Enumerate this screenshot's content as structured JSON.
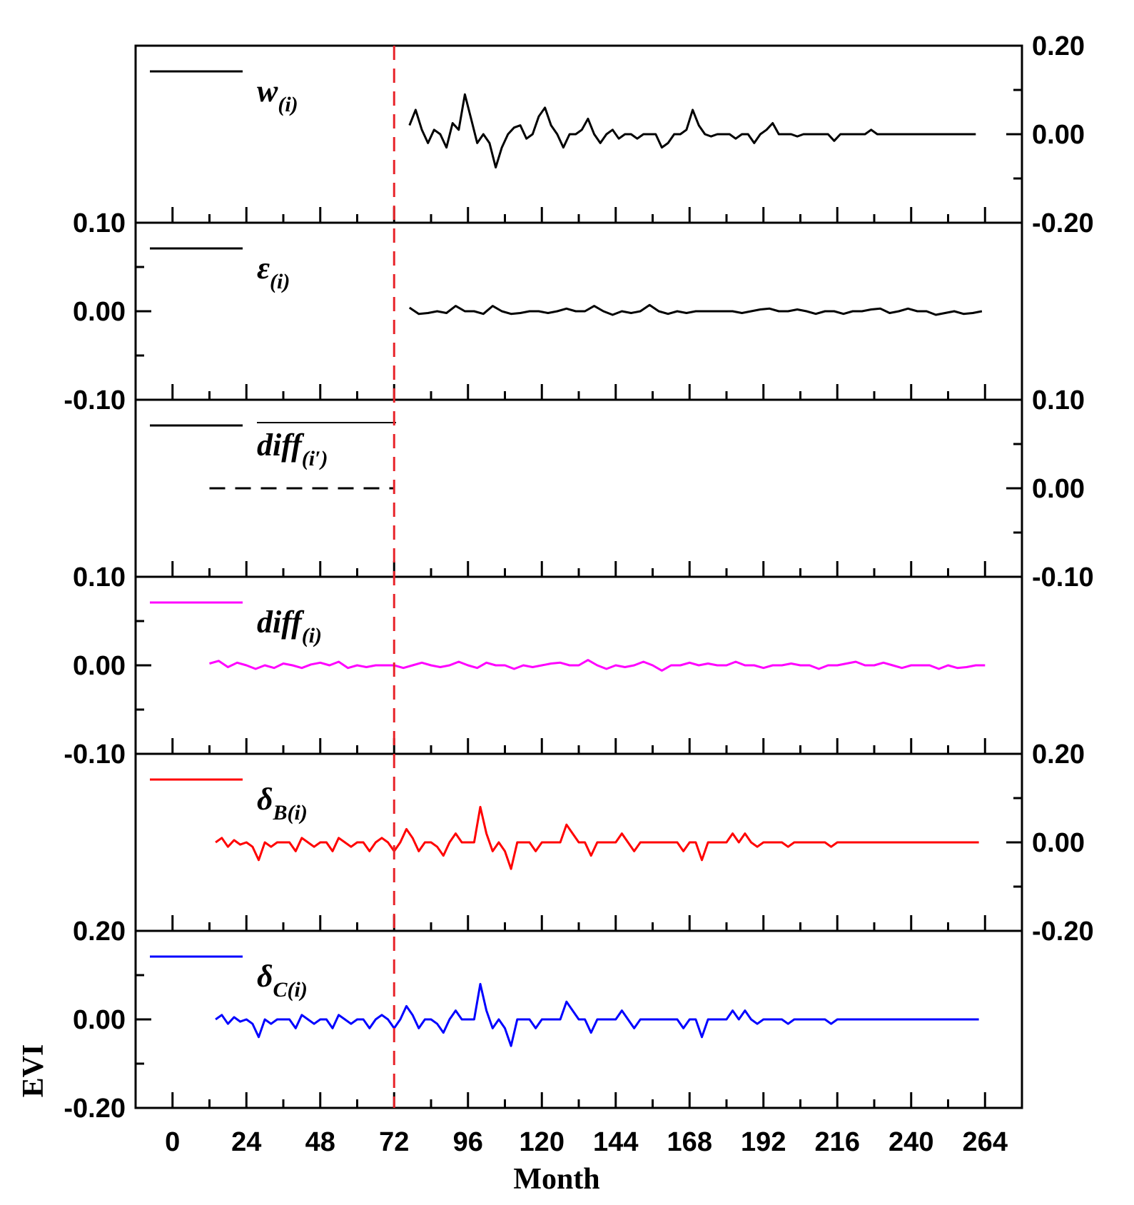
{
  "chart_data": {
    "type": "line",
    "xlabel": "Month",
    "ylabel": "EVI",
    "x_ticks": [
      "0",
      "24",
      "48",
      "72",
      "96",
      "120",
      "144",
      "168",
      "192",
      "216",
      "240",
      "264"
    ],
    "xlim": [
      -12,
      276
    ],
    "reference_line": {
      "x": 72,
      "style": "dashed",
      "color": "#e8242a"
    },
    "panels": [
      {
        "id": "w",
        "legend": {
          "base": "w",
          "sub": "(i)"
        },
        "color": "#000000",
        "axis_side": "right",
        "ylim": [
          -0.2,
          0.2
        ],
        "tick_labels": [
          "0.20",
          "0.00",
          "-0.20"
        ],
        "x": [
          77,
          79,
          81,
          83,
          85,
          87,
          89,
          91,
          93,
          95,
          97,
          99,
          101,
          103,
          105,
          107,
          109,
          111,
          113,
          115,
          117,
          119,
          121,
          123,
          125,
          127,
          129,
          131,
          133,
          135,
          137,
          139,
          141,
          143,
          145,
          147,
          149,
          151,
          153,
          155,
          157,
          159,
          161,
          163,
          165,
          167,
          169,
          171,
          173,
          175,
          177,
          179,
          181,
          183,
          185,
          187,
          189,
          191,
          193,
          195,
          197,
          199,
          201,
          203,
          205,
          207,
          209,
          211,
          213,
          215,
          217,
          219,
          221,
          223,
          225,
          227,
          229,
          231,
          233,
          235,
          237,
          239,
          241,
          243,
          245,
          247,
          249,
          251,
          253,
          255,
          257,
          259,
          261
        ],
        "values": [
          0.02,
          0.055,
          0.01,
          -0.02,
          0.01,
          0.0,
          -0.03,
          0.025,
          0.01,
          0.09,
          0.035,
          -0.02,
          0.0,
          -0.02,
          -0.075,
          -0.03,
          0.0,
          0.015,
          0.02,
          -0.01,
          0.0,
          0.04,
          0.06,
          0.02,
          0.0,
          -0.03,
          0.0,
          0.0,
          0.01,
          0.035,
          0.0,
          -0.02,
          0.0,
          0.01,
          -0.01,
          0.0,
          0.0,
          -0.01,
          0.0,
          0.0,
          0.0,
          -0.03,
          -0.02,
          0.0,
          0.0,
          0.01,
          0.055,
          0.02,
          0.0,
          -0.005,
          0.0,
          0.0,
          0.0,
          -0.01,
          0.0,
          0.0,
          -0.02,
          0.0,
          0.01,
          0.025,
          0.0,
          0.0,
          0.0,
          -0.005,
          0.0,
          0.0,
          0.0,
          0.0,
          0.0,
          -0.015,
          0.0,
          0.0,
          0.0,
          0.0,
          0.0,
          0.01,
          0.0,
          0.0,
          0.0,
          0.0,
          0.0,
          0.0,
          0.0,
          0.0,
          0.0,
          0.0,
          0.0,
          0.0,
          0.0,
          0.0,
          0.0,
          0.0,
          0.0
        ]
      },
      {
        "id": "epsilon",
        "legend": {
          "base": "ε",
          "sub": "(i)"
        },
        "color": "#000000",
        "axis_side": "left",
        "ylim": [
          -0.1,
          0.1
        ],
        "tick_labels": [
          "0.10",
          "0.00",
          "-0.10"
        ],
        "x": [
          77,
          80,
          83,
          86,
          89,
          92,
          95,
          98,
          101,
          104,
          107,
          110,
          113,
          116,
          119,
          122,
          125,
          128,
          131,
          134,
          137,
          140,
          143,
          146,
          149,
          152,
          155,
          158,
          161,
          164,
          167,
          170,
          173,
          176,
          179,
          182,
          185,
          188,
          191,
          194,
          197,
          200,
          203,
          206,
          209,
          212,
          215,
          218,
          221,
          224,
          227,
          230,
          233,
          236,
          239,
          242,
          245,
          248,
          251,
          254,
          257,
          260,
          263
        ],
        "values": [
          0.004,
          -0.003,
          -0.002,
          0.0,
          -0.002,
          0.006,
          0.0,
          0.0,
          -0.003,
          0.006,
          0.0,
          -0.003,
          -0.002,
          0.0,
          0.0,
          -0.002,
          0.0,
          0.003,
          0.0,
          0.0,
          0.006,
          0.0,
          -0.004,
          0.0,
          -0.002,
          0.0,
          0.007,
          0.0,
          -0.003,
          0.0,
          -0.002,
          0.0,
          0.0,
          0.0,
          0.0,
          0.0,
          -0.002,
          0.0,
          0.002,
          0.003,
          0.0,
          0.0,
          0.002,
          0.0,
          -0.003,
          0.0,
          0.0,
          -0.003,
          0.0,
          0.0,
          0.002,
          0.003,
          -0.002,
          0.0,
          0.003,
          0.0,
          0.0,
          -0.004,
          -0.002,
          0.0,
          -0.003,
          -0.002,
          0.0
        ]
      },
      {
        "id": "diff_bar",
        "legend": {
          "base": "diff",
          "sub": "(i′)",
          "prime": "′",
          "overline": true
        },
        "color": "#000000",
        "axis_side": "right",
        "ylim": [
          -0.1,
          0.1
        ],
        "tick_labels": [
          "0.10",
          "0.00",
          "-0.10"
        ],
        "segment": {
          "x_start": 12,
          "x_end": 72,
          "value": 0.0,
          "style": "dashed"
        }
      },
      {
        "id": "diff",
        "legend": {
          "base": "diff",
          "sub": "(i)"
        },
        "color": "#ff00ff",
        "axis_side": "left",
        "ylim": [
          -0.1,
          0.1
        ],
        "tick_labels": [
          "0.10",
          "0.00",
          "-0.10"
        ],
        "x": [
          12,
          15,
          18,
          21,
          24,
          27,
          30,
          33,
          36,
          39,
          42,
          45,
          48,
          51,
          54,
          57,
          60,
          63,
          66,
          69,
          72,
          75,
          78,
          81,
          84,
          87,
          90,
          93,
          96,
          99,
          102,
          105,
          108,
          111,
          114,
          117,
          120,
          123,
          126,
          129,
          132,
          135,
          138,
          141,
          144,
          147,
          150,
          153,
          156,
          159,
          162,
          165,
          168,
          171,
          174,
          177,
          180,
          183,
          186,
          189,
          192,
          195,
          198,
          201,
          204,
          207,
          210,
          213,
          216,
          219,
          222,
          225,
          228,
          231,
          234,
          237,
          240,
          243,
          246,
          249,
          252,
          255,
          258,
          261,
          264
        ],
        "values": [
          0.002,
          0.005,
          -0.002,
          0.003,
          0.0,
          -0.004,
          0.0,
          -0.003,
          0.002,
          0.0,
          -0.003,
          0.001,
          0.003,
          0.0,
          0.004,
          -0.003,
          0.0,
          -0.002,
          0.0,
          0.0,
          0.0,
          -0.003,
          0.0,
          0.003,
          0.0,
          -0.002,
          0.0,
          0.004,
          0.0,
          -0.003,
          0.003,
          0.0,
          0.0,
          -0.004,
          0.0,
          -0.002,
          0.0,
          0.002,
          0.003,
          0.0,
          0.0,
          0.006,
          0.0,
          -0.004,
          0.0,
          -0.002,
          0.0,
          0.004,
          0.0,
          -0.006,
          0.0,
          0.0,
          0.003,
          0.0,
          0.002,
          0.0,
          0.0,
          0.004,
          0.0,
          0.0,
          -0.003,
          0.0,
          0.0,
          0.002,
          0.0,
          0.0,
          -0.004,
          0.0,
          0.0,
          0.002,
          0.004,
          0.0,
          0.0,
          0.003,
          0.0,
          -0.003,
          0.0,
          0.0,
          0.0,
          -0.004,
          0.0,
          -0.003,
          -0.002,
          0.0,
          0.0
        ]
      },
      {
        "id": "delta_b",
        "legend": {
          "base": "δ",
          "sub": "B(i)"
        },
        "color": "#ff0000",
        "axis_side": "right",
        "ylim": [
          -0.2,
          0.2
        ],
        "tick_labels": [
          "0.20",
          "0.00",
          "-0.20"
        ],
        "x": [
          14,
          16,
          18,
          20,
          22,
          24,
          26,
          28,
          30,
          32,
          34,
          36,
          38,
          40,
          42,
          44,
          46,
          48,
          50,
          52,
          54,
          56,
          58,
          60,
          62,
          64,
          66,
          68,
          70,
          72,
          74,
          76,
          78,
          80,
          82,
          84,
          86,
          88,
          90,
          92,
          94,
          96,
          98,
          100,
          102,
          104,
          106,
          108,
          110,
          112,
          114,
          116,
          118,
          120,
          122,
          124,
          126,
          128,
          130,
          132,
          134,
          136,
          138,
          140,
          142,
          144,
          146,
          148,
          150,
          152,
          154,
          156,
          158,
          160,
          162,
          164,
          166,
          168,
          170,
          172,
          174,
          176,
          178,
          180,
          182,
          184,
          186,
          188,
          190,
          192,
          194,
          196,
          198,
          200,
          202,
          204,
          206,
          208,
          210,
          212,
          214,
          216,
          218,
          220,
          222,
          224,
          226,
          228,
          230,
          232,
          234,
          236,
          238,
          240,
          242,
          244,
          246,
          248,
          250,
          252,
          254,
          256,
          258,
          260,
          262
        ],
        "values": [
          0.0,
          0.01,
          -0.01,
          0.005,
          -0.005,
          0.0,
          -0.01,
          -0.04,
          0.0,
          -0.01,
          0.0,
          0.0,
          0.0,
          -0.02,
          0.01,
          0.0,
          -0.01,
          0.0,
          0.0,
          -0.02,
          0.01,
          0.0,
          -0.01,
          0.0,
          0.0,
          -0.02,
          0.0,
          0.01,
          0.0,
          -0.02,
          0.0,
          0.03,
          0.01,
          -0.02,
          0.0,
          0.0,
          -0.01,
          -0.03,
          0.0,
          0.02,
          0.0,
          0.0,
          0.0,
          0.08,
          0.02,
          -0.02,
          0.0,
          -0.02,
          -0.06,
          0.0,
          0.0,
          0.0,
          -0.02,
          0.0,
          0.0,
          0.0,
          0.0,
          0.04,
          0.02,
          0.0,
          0.0,
          -0.03,
          0.0,
          0.0,
          0.0,
          0.0,
          0.02,
          0.0,
          -0.02,
          0.0,
          0.0,
          0.0,
          0.0,
          0.0,
          0.0,
          0.0,
          -0.02,
          0.0,
          0.0,
          -0.04,
          0.0,
          0.0,
          0.0,
          0.0,
          0.02,
          0.0,
          0.02,
          0.0,
          -0.01,
          0.0,
          0.0,
          0.0,
          0.0,
          -0.01,
          0.0,
          0.0,
          0.0,
          0.0,
          0.0,
          0.0,
          -0.01,
          0.0,
          0.0,
          0.0,
          0.0,
          0.0,
          0.0,
          0.0,
          0.0,
          0.0,
          0.0,
          0.0,
          0.0,
          0.0,
          0.0,
          0.0,
          0.0,
          0.0,
          0.0,
          0.0,
          0.0,
          0.0,
          0.0,
          0.0,
          0.0
        ]
      },
      {
        "id": "delta_c",
        "legend": {
          "base": "δ",
          "sub": "C(i)"
        },
        "color": "#0000ff",
        "axis_side": "left",
        "ylim": [
          -0.2,
          0.2
        ],
        "tick_labels": [
          "0.20",
          "0.00",
          "-0.20"
        ],
        "x": [
          14,
          16,
          18,
          20,
          22,
          24,
          26,
          28,
          30,
          32,
          34,
          36,
          38,
          40,
          42,
          44,
          46,
          48,
          50,
          52,
          54,
          56,
          58,
          60,
          62,
          64,
          66,
          68,
          70,
          72,
          74,
          76,
          78,
          80,
          82,
          84,
          86,
          88,
          90,
          92,
          94,
          96,
          98,
          100,
          102,
          104,
          106,
          108,
          110,
          112,
          114,
          116,
          118,
          120,
          122,
          124,
          126,
          128,
          130,
          132,
          134,
          136,
          138,
          140,
          142,
          144,
          146,
          148,
          150,
          152,
          154,
          156,
          158,
          160,
          162,
          164,
          166,
          168,
          170,
          172,
          174,
          176,
          178,
          180,
          182,
          184,
          186,
          188,
          190,
          192,
          194,
          196,
          198,
          200,
          202,
          204,
          206,
          208,
          210,
          212,
          214,
          216,
          218,
          220,
          222,
          224,
          226,
          228,
          230,
          232,
          234,
          236,
          238,
          240,
          242,
          244,
          246,
          248,
          250,
          252,
          254,
          256,
          258,
          260,
          262
        ],
        "values": [
          0.0,
          0.01,
          -0.01,
          0.005,
          -0.005,
          0.0,
          -0.01,
          -0.04,
          0.0,
          -0.01,
          0.0,
          0.0,
          0.0,
          -0.02,
          0.01,
          0.0,
          -0.01,
          0.0,
          0.0,
          -0.02,
          0.01,
          0.0,
          -0.01,
          0.0,
          0.0,
          -0.02,
          0.0,
          0.01,
          0.0,
          -0.02,
          0.0,
          0.03,
          0.01,
          -0.02,
          0.0,
          0.0,
          -0.01,
          -0.03,
          0.0,
          0.02,
          0.0,
          0.0,
          0.0,
          0.08,
          0.02,
          -0.02,
          0.0,
          -0.02,
          -0.06,
          0.0,
          0.0,
          0.0,
          -0.02,
          0.0,
          0.0,
          0.0,
          0.0,
          0.04,
          0.02,
          0.0,
          0.0,
          -0.03,
          0.0,
          0.0,
          0.0,
          0.0,
          0.02,
          0.0,
          -0.02,
          0.0,
          0.0,
          0.0,
          0.0,
          0.0,
          0.0,
          0.0,
          -0.02,
          0.0,
          0.0,
          -0.04,
          0.0,
          0.0,
          0.0,
          0.0,
          0.02,
          0.0,
          0.02,
          0.0,
          -0.01,
          0.0,
          0.0,
          0.0,
          0.0,
          -0.01,
          0.0,
          0.0,
          0.0,
          0.0,
          0.0,
          0.0,
          -0.01,
          0.0,
          0.0,
          0.0,
          0.0,
          0.0,
          0.0,
          0.0,
          0.0,
          0.0,
          0.0,
          0.0,
          0.0,
          0.0,
          0.0,
          0.0,
          0.0,
          0.0,
          0.0,
          0.0,
          0.0,
          0.0,
          0.0,
          0.0,
          0.0
        ]
      }
    ]
  }
}
